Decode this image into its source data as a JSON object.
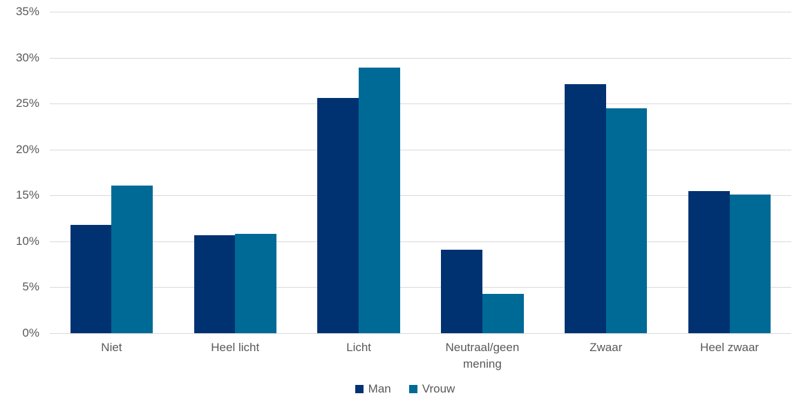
{
  "chart_data": {
    "type": "bar",
    "title": "",
    "xlabel": "",
    "ylabel": "",
    "categories": [
      "Niet",
      "Heel licht",
      "Licht",
      "Neutraal/geen mening",
      "Zwaar",
      "Heel zwaar"
    ],
    "series": [
      {
        "name": "Man",
        "color": "#003272",
        "values": [
          11.8,
          10.7,
          25.6,
          9.1,
          27.1,
          15.5
        ]
      },
      {
        "name": "Vrouw",
        "color": "#006a96",
        "values": [
          16.1,
          10.8,
          28.9,
          4.3,
          24.5,
          15.1
        ]
      }
    ],
    "ylim": [
      0,
      35
    ],
    "ytick_step": 5,
    "ytick_labels": [
      "0%",
      "5%",
      "10%",
      "15%",
      "20%",
      "25%",
      "30%",
      "35%"
    ],
    "grid": true,
    "legend_position": "bottom"
  },
  "colors": {
    "background": "#ffffff",
    "gridline": "#d9d9d9",
    "tick_text": "#595959"
  }
}
